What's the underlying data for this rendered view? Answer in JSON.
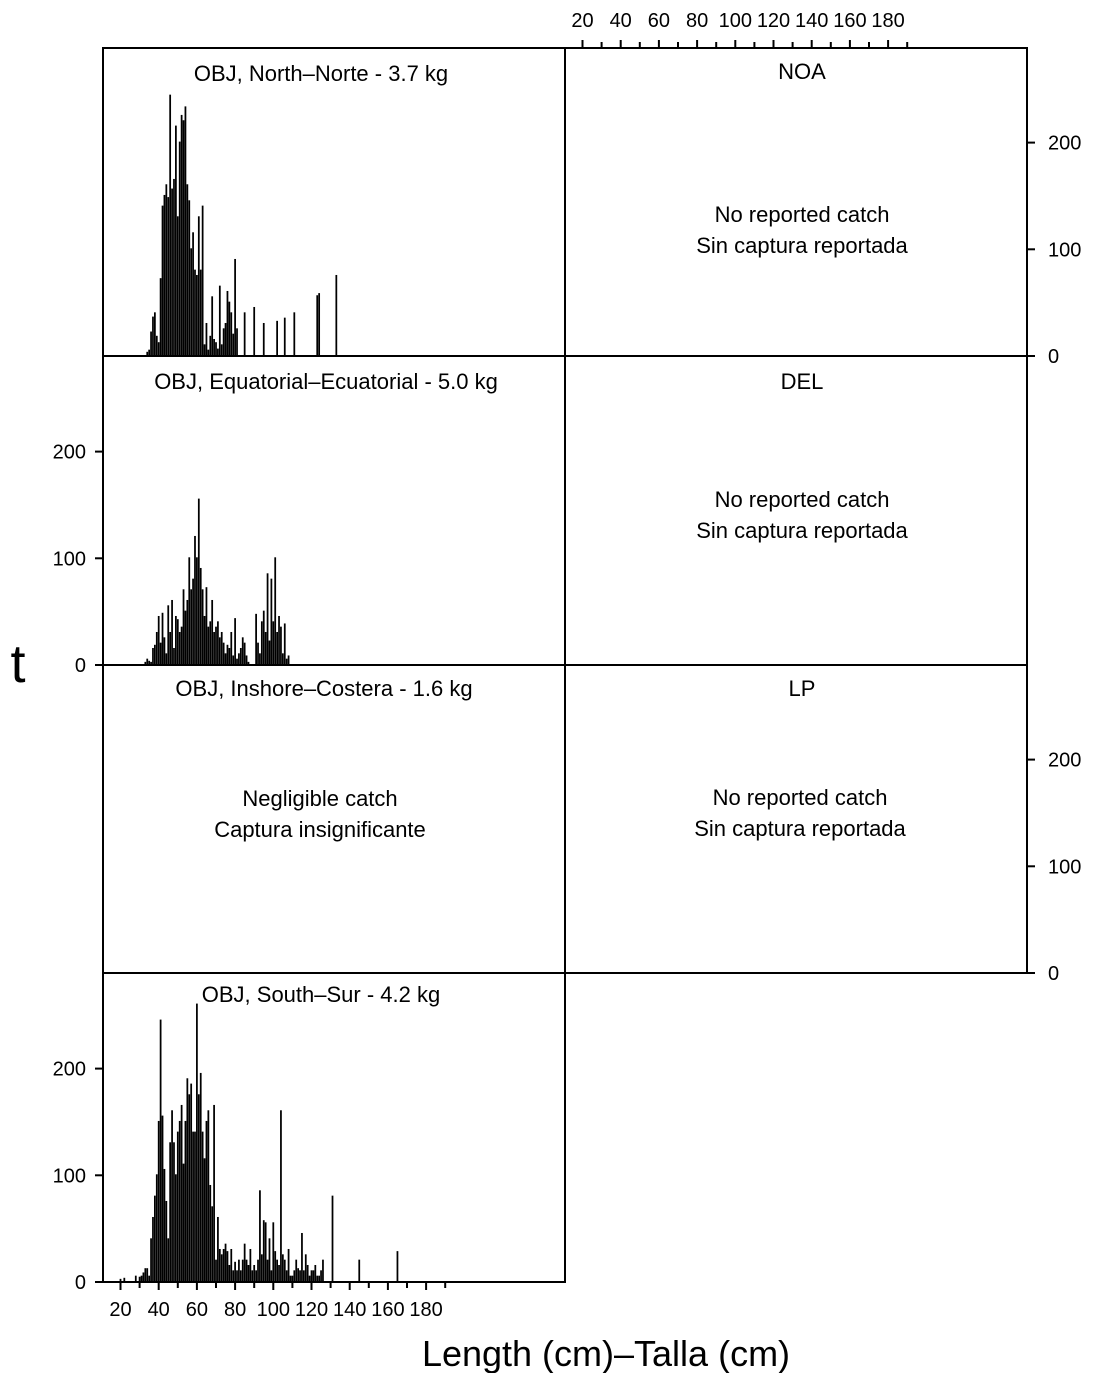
{
  "chart_data": [
    {
      "type": "bar",
      "title": "OBJ, North–Norte - 3.7 kg",
      "bins": [
        34,
        35,
        36,
        37,
        38,
        39,
        40,
        41,
        42,
        43,
        44,
        45,
        46,
        47,
        48,
        49,
        50,
        51,
        52,
        53,
        54,
        55,
        56,
        57,
        58,
        59,
        60,
        61,
        62,
        63,
        64,
        65,
        66,
        67,
        68,
        69,
        70,
        71,
        72,
        73,
        74,
        75,
        76,
        77,
        78,
        79,
        80,
        81,
        82,
        83,
        84,
        85,
        86,
        87,
        88,
        89,
        90,
        91,
        92,
        93,
        94,
        95,
        96,
        97,
        98,
        99,
        100,
        101,
        102,
        103,
        104,
        105,
        106,
        107,
        108,
        109,
        110,
        111,
        112,
        113,
        114,
        115,
        116,
        117,
        118,
        119,
        120,
        121,
        122,
        123,
        124,
        125,
        126,
        127,
        128,
        129,
        130,
        131,
        132,
        133,
        134,
        135
      ],
      "values": [
        3,
        5,
        22,
        36,
        40,
        18,
        12,
        72,
        140,
        150,
        160,
        148,
        244,
        156,
        165,
        215,
        130,
        200,
        225,
        220,
        233,
        160,
        145,
        100,
        115,
        80,
        75,
        130,
        80,
        140,
        10,
        30,
        5,
        18,
        55,
        15,
        12,
        6,
        65,
        10,
        25,
        30,
        60,
        50,
        40,
        20,
        90,
        25,
        0,
        0,
        0,
        0,
        0,
        0,
        0,
        0,
        0,
        0,
        0,
        0,
        0,
        0,
        0,
        0,
        0,
        0,
        0,
        0,
        0,
        0,
        0,
        0,
        0,
        0,
        0,
        0,
        0,
        0,
        0,
        0,
        0,
        0,
        0,
        0,
        0,
        0,
        0,
        0,
        0,
        0,
        0,
        0,
        0,
        0,
        0,
        0,
        0,
        0,
        0,
        0,
        0,
        0
      ],
      "extra_bars": [
        {
          "x": 85,
          "y": 40
        },
        {
          "x": 90,
          "y": 45
        },
        {
          "x": 95,
          "y": 30
        },
        {
          "x": 102,
          "y": 32
        },
        {
          "x": 106,
          "y": 35
        },
        {
          "x": 111,
          "y": 40
        },
        {
          "x": 123,
          "y": 56
        },
        {
          "x": 124,
          "y": 58
        },
        {
          "x": 133,
          "y": 75
        }
      ],
      "ylim": [
        0,
        288
      ],
      "message": ""
    },
    {
      "type": "bar",
      "title": "NOA",
      "message_lines": [
        "No reported catch",
        "Sin captura reportada"
      ]
    },
    {
      "type": "bar",
      "title": "OBJ, Equatorial–Ecuatorial - 5.0 kg",
      "bins": [
        33,
        34,
        35,
        36,
        37,
        38,
        39,
        40,
        41,
        42,
        43,
        44,
        45,
        46,
        47,
        48,
        49,
        50,
        51,
        52,
        53,
        54,
        55,
        56,
        57,
        58,
        59,
        60,
        61,
        62,
        63,
        64,
        65,
        66,
        67,
        68,
        69,
        70,
        71,
        72,
        73,
        74,
        75,
        76,
        77,
        78,
        79,
        80,
        81,
        82,
        83,
        84,
        85,
        86,
        87,
        88,
        89,
        90,
        91,
        92,
        93,
        94,
        95,
        96,
        97,
        98,
        99,
        100,
        101,
        102,
        103,
        104,
        105,
        106,
        107,
        108,
        109,
        110,
        111
      ],
      "values": [
        2,
        5,
        3,
        2,
        15,
        18,
        30,
        45,
        20,
        48,
        25,
        10,
        55,
        30,
        60,
        15,
        45,
        42,
        30,
        35,
        70,
        50,
        60,
        100,
        70,
        80,
        120,
        100,
        155,
        90,
        70,
        45,
        72,
        35,
        40,
        60,
        30,
        35,
        40,
        25,
        30,
        20,
        10,
        18,
        15,
        30,
        8,
        43,
        5,
        10,
        15,
        25,
        20,
        8,
        2,
        0,
        0,
        0,
        47,
        20,
        10,
        40,
        50,
        30,
        85,
        22,
        80,
        40,
        100,
        30,
        45,
        35,
        10,
        38,
        5,
        8,
        0,
        0,
        0
      ],
      "ylim": [
        0,
        288
      ],
      "ylabel_ticks": [
        0,
        100,
        200
      ],
      "message": ""
    },
    {
      "type": "bar",
      "title": "DEL",
      "message_lines": [
        "No reported catch",
        "Sin captura reportada"
      ]
    },
    {
      "type": "bar",
      "title": "OBJ, Inshore–Costera - 1.6 kg",
      "message_lines": [
        "Negligible catch",
        "Captura insignificante"
      ]
    },
    {
      "type": "bar",
      "title": "LP",
      "message_lines": [
        "No reported catch",
        "Sin captura reportada"
      ]
    },
    {
      "type": "bar",
      "title": "OBJ, South–Sur - 4.2 kg",
      "bins": [
        20,
        22,
        28,
        30,
        31,
        32,
        33,
        34,
        35,
        36,
        37,
        38,
        39,
        40,
        41,
        42,
        43,
        44,
        45,
        46,
        47,
        48,
        49,
        50,
        51,
        52,
        53,
        54,
        55,
        56,
        57,
        58,
        59,
        60,
        61,
        62,
        63,
        64,
        65,
        66,
        67,
        68,
        69,
        70,
        71,
        72,
        73,
        74,
        75,
        76,
        77,
        78,
        79,
        80,
        81,
        82,
        83,
        84,
        85,
        86,
        87,
        88,
        89,
        90,
        91,
        92,
        93,
        94,
        95,
        96,
        97,
        98,
        99,
        100,
        101,
        102,
        103,
        104,
        105,
        106,
        107,
        108,
        109,
        110,
        111,
        112,
        113,
        114,
        115,
        116,
        117,
        118,
        119,
        120,
        121,
        122,
        123,
        124,
        125,
        126,
        127,
        128,
        129,
        130,
        131
      ],
      "values": [
        2,
        3,
        5,
        4,
        5,
        8,
        12,
        12,
        5,
        40,
        60,
        80,
        100,
        150,
        245,
        155,
        105,
        75,
        40,
        130,
        160,
        130,
        100,
        140,
        150,
        165,
        110,
        150,
        190,
        175,
        185,
        140,
        140,
        260,
        175,
        195,
        140,
        115,
        150,
        160,
        90,
        70,
        165,
        20,
        60,
        30,
        25,
        30,
        35,
        28,
        15,
        30,
        10,
        18,
        10,
        20,
        10,
        20,
        35,
        20,
        15,
        30,
        10,
        15,
        10,
        20,
        85,
        25,
        57,
        55,
        20,
        40,
        10,
        55,
        28,
        20,
        15,
        160,
        25,
        20,
        10,
        30,
        5,
        5,
        10,
        20,
        12,
        10,
        45,
        10,
        25,
        15,
        5,
        10,
        10,
        15,
        5,
        5,
        10,
        20,
        0,
        0,
        0,
        0,
        80
      ],
      "extra_bars": [
        {
          "x": 145,
          "y": 20
        },
        {
          "x": 165,
          "y": 28
        }
      ],
      "ylim": [
        0,
        288
      ],
      "ylabel_ticks": [
        0,
        100,
        200
      ],
      "message": ""
    }
  ],
  "axes": {
    "x_ticks": [
      "20",
      "40",
      "60",
      "80",
      "100",
      "120",
      "140",
      "160",
      "180"
    ],
    "y_ticks": [
      "0",
      "100",
      "200"
    ],
    "x_label": "Length (cm)–Talla (cm)",
    "y_label": "t"
  },
  "colors": {
    "bars": "#000000",
    "frame": "#000000",
    "background": "#ffffff"
  }
}
